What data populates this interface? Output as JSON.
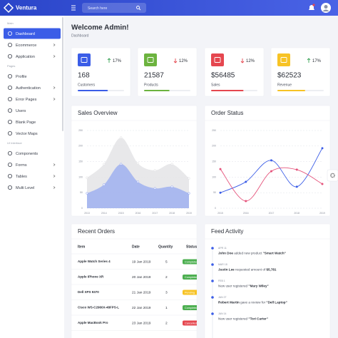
{
  "topbar": {
    "brand": "Ventura",
    "search_placeholder": "Search here"
  },
  "sidebar": {
    "sections": [
      {
        "title": "Main",
        "items": [
          {
            "label": "Dashboard",
            "active": true
          },
          {
            "label": "Ecommerce",
            "arrow": true
          },
          {
            "label": "Application",
            "arrow": true
          }
        ]
      },
      {
        "title": "Pages",
        "items": [
          {
            "label": "Profile"
          },
          {
            "label": "Authentication",
            "arrow": true
          },
          {
            "label": "Error Pages",
            "arrow": true
          },
          {
            "label": "Users"
          },
          {
            "label": "Blank Page"
          },
          {
            "label": "Vector Maps"
          }
        ]
      },
      {
        "title": "UI Interface",
        "items": [
          {
            "label": "Components"
          },
          {
            "label": "Forms",
            "arrow": true
          },
          {
            "label": "Tables",
            "arrow": true
          },
          {
            "label": "Multi Level",
            "arrow": true
          }
        ]
      }
    ]
  },
  "header": {
    "title": "Welcome Admin!",
    "breadcrumb": "Dashboard"
  },
  "stats": [
    {
      "value": "168",
      "label": "Customers",
      "change": "17%",
      "trend": "up",
      "color": "#3b5de7"
    },
    {
      "value": "21587",
      "label": "Products",
      "change": "12%",
      "trend": "down",
      "color": "#6cb33f"
    },
    {
      "value": "$56485",
      "label": "Sales",
      "change": "12%",
      "trend": "down",
      "color": "#e5474f"
    },
    {
      "value": "$62523",
      "label": "Revenue",
      "change": "17%",
      "trend": "up",
      "color": "#f7c325"
    }
  ],
  "sales_overview": {
    "type": "area",
    "title": "Sales Overview",
    "x": [
      "2013",
      "2014",
      "2015",
      "2016",
      "2017",
      "2018",
      "2019"
    ],
    "series": [
      {
        "color": "#e4e4e6",
        "values": [
          98,
          142,
          227,
          144,
          122,
          142,
          96
        ]
      },
      {
        "color": "#9fb0f0",
        "values": [
          48,
          76,
          142,
          85,
          64,
          69,
          48
        ]
      }
    ],
    "ylim": [
      0,
      250
    ],
    "yticks": [
      0,
      50,
      100,
      150,
      200,
      250
    ],
    "grid": true
  },
  "order_status": {
    "type": "line",
    "title": "Order Status",
    "x": [
      "2015",
      "2016",
      "2017",
      "2018",
      "2019"
    ],
    "series": [
      {
        "color": "#3b5de7",
        "values": [
          50,
          85,
          154,
          69,
          193
        ]
      },
      {
        "color": "#e5537b",
        "values": [
          126,
          23,
          119,
          124,
          78
        ]
      }
    ],
    "ylim": [
      0,
      250
    ],
    "yticks": [
      0,
      50,
      100,
      150,
      200,
      250
    ],
    "grid": true
  },
  "recent_orders": {
    "title": "Recent Orders",
    "columns": [
      "Item",
      "Date",
      "Quantity",
      "Status"
    ],
    "rows": [
      [
        "Apple Watch Series 4",
        "19 Jan 2019",
        "5",
        "Completed"
      ],
      [
        "Apple iPhone XR",
        "20 Jan 2019",
        "2",
        "Completed"
      ],
      [
        "Dell XPS 9370",
        "21 Jan 2019",
        "3",
        "Pending"
      ],
      [
        "Cisco WS-C2960X-48FPS-L",
        "22 Jan 2019",
        "1",
        "Completed"
      ],
      [
        "Apple MacBook Pro",
        "23 Jan 2019",
        "2",
        "Cancelled"
      ]
    ],
    "status_colors": {
      "Completed": "#4caf50",
      "Pending": "#f7c325",
      "Cancelled": "#e5474f"
    }
  },
  "feed": {
    "title": "Feed Activity",
    "items": [
      {
        "date": "APR 11",
        "actor": "John Doe",
        "action": "added new product",
        "object": "\"Smart Watch\""
      },
      {
        "date": "MAR 18",
        "actor": "Justin Lee",
        "action": "requested amount of",
        "object": "$5,781"
      },
      {
        "date": "FEB 1",
        "action": "New user registered",
        "object": "\"Mary Wiley\""
      },
      {
        "date": "JAN 27",
        "actor": "Robert Martin",
        "action": "gave a review for",
        "object": "\"Dell Laptop\""
      },
      {
        "date": "JAN 14",
        "action": "New user registered",
        "object": "\"Tori Carter\""
      }
    ]
  }
}
